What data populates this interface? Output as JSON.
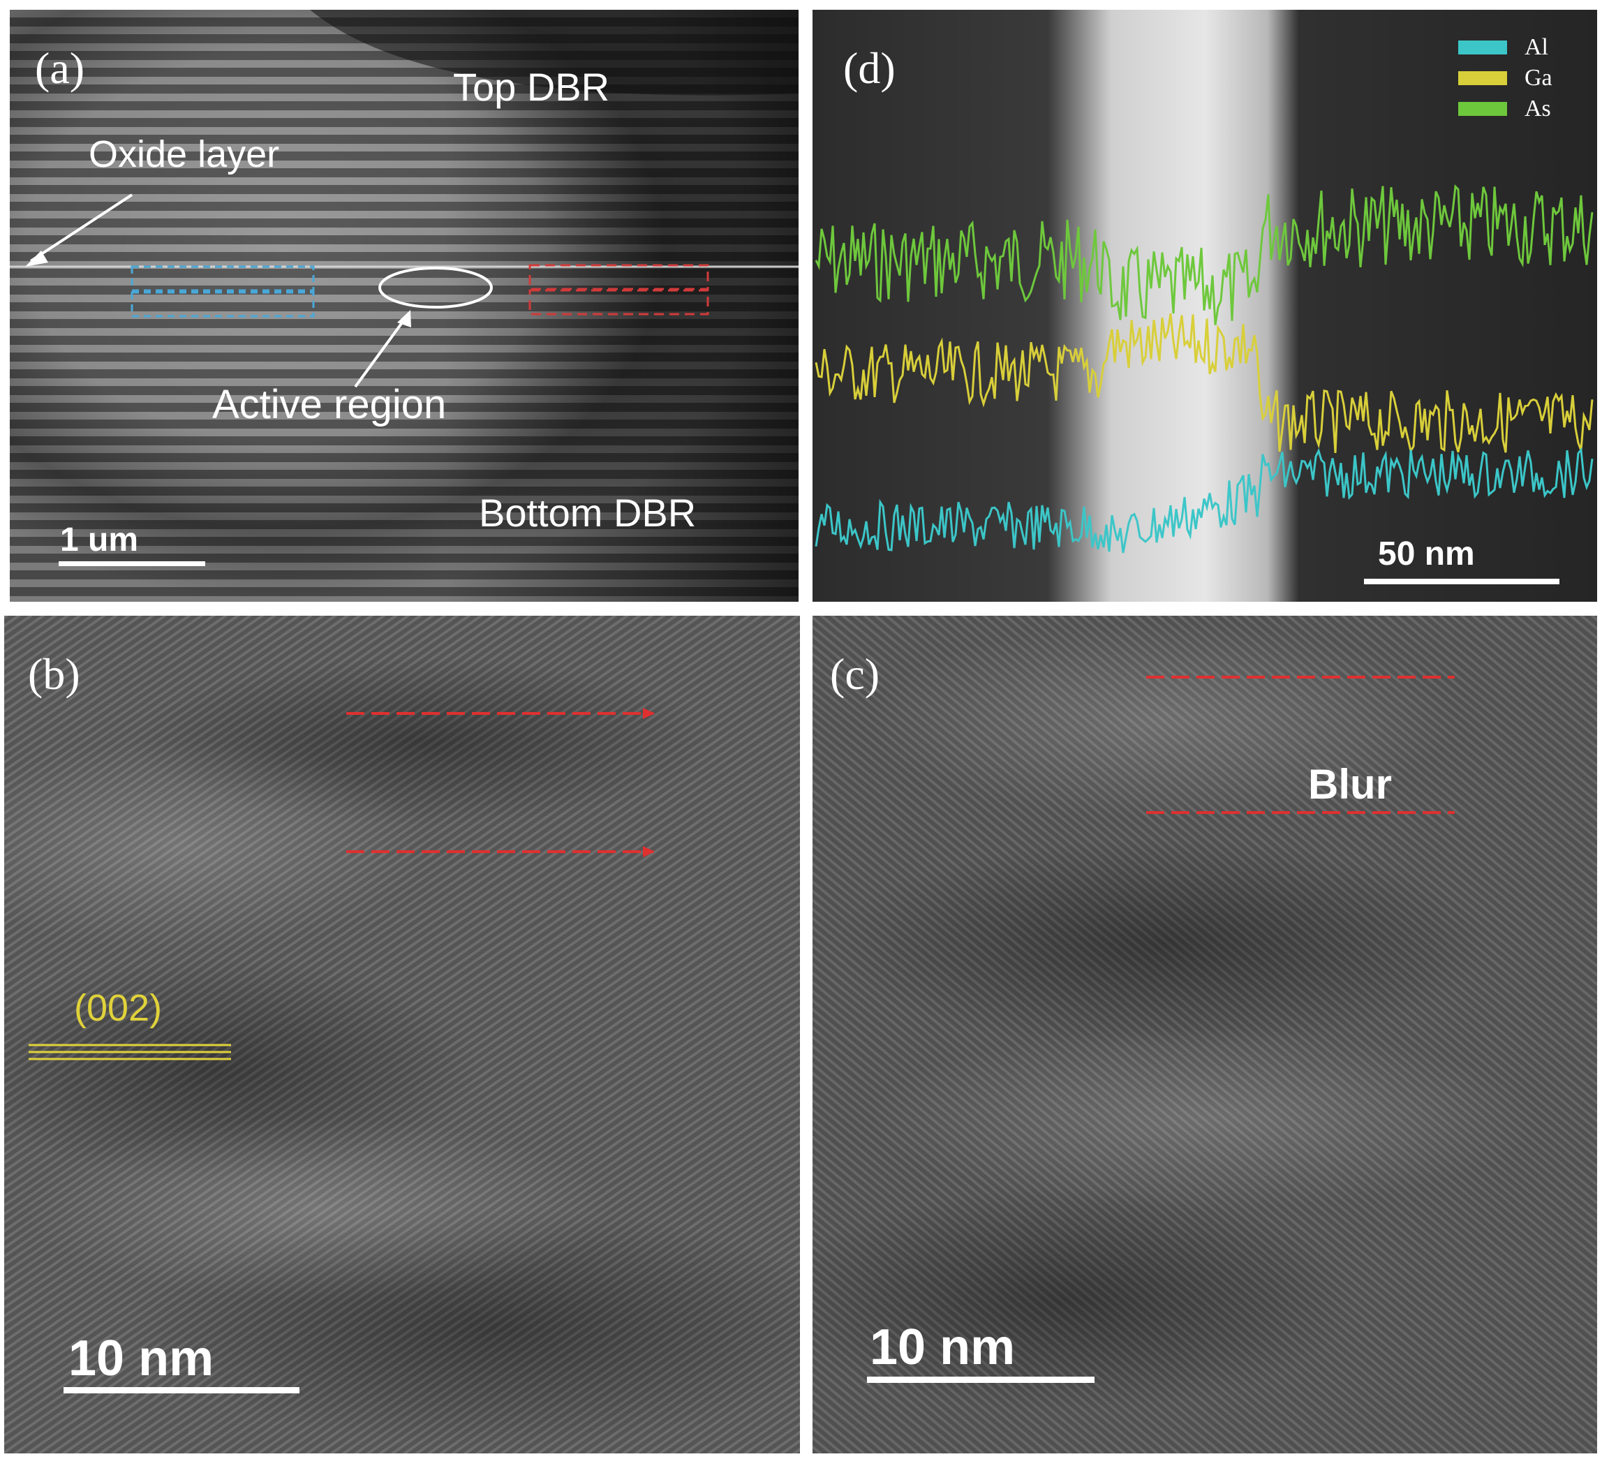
{
  "figure": {
    "panel_a": {
      "label": "(a)",
      "top_dbr": "Top DBR",
      "oxide_layer": "Oxide layer",
      "active_region": "Active region",
      "bottom_dbr": "Bottom DBR",
      "scale_bar": "1 um"
    },
    "panel_b": {
      "label": "(b)",
      "plane_label": "(002)",
      "scale_bar": "10 nm"
    },
    "panel_c": {
      "label": "(c)",
      "blur_label": "Blur",
      "scale_bar": "10 nm"
    },
    "panel_d": {
      "label": "(d)",
      "scale_bar": "50 nm",
      "legend": [
        {
          "name": "Al",
          "color": "#3cc6c8"
        },
        {
          "name": "Ga",
          "color": "#d8cf3a"
        },
        {
          "name": "As",
          "color": "#6ec83c"
        }
      ]
    }
  }
}
